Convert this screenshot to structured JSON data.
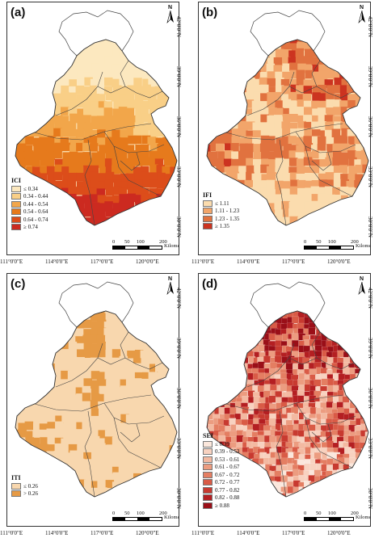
{
  "panels": [
    {
      "id": "a",
      "label": "(a)",
      "legend_title": "ICI",
      "legend": [
        {
          "label": "≤ 0.34",
          "color": "#fce8bf"
        },
        {
          "label": "0.34 - 0.44",
          "color": "#f9cf87"
        },
        {
          "label": "0.44 - 0.54",
          "color": "#f2a64a"
        },
        {
          "label": "0.54 - 0.64",
          "color": "#e67a1c"
        },
        {
          "label": "0.64 - 0.74",
          "color": "#dc4d1a"
        },
        {
          "label": "≥ 0.74",
          "color": "#cc2a20"
        }
      ]
    },
    {
      "id": "b",
      "label": "(b)",
      "legend_title": "IFI",
      "legend": [
        {
          "label": "≤ 1.11",
          "color": "#fbdcae"
        },
        {
          "label": "1.11 - 1.23",
          "color": "#f2a56a"
        },
        {
          "label": "1.23 - 1.35",
          "color": "#e1723f"
        },
        {
          "label": "≥ 1.35",
          "color": "#cc3320"
        }
      ]
    },
    {
      "id": "c",
      "label": "(c)",
      "legend_title": "ITI",
      "legend": [
        {
          "label": "≤ 0.26",
          "color": "#f8d7ae"
        },
        {
          "label": "> 0.26",
          "color": "#e69a45"
        }
      ]
    },
    {
      "id": "d",
      "label": "(d)",
      "legend_title": "SEI",
      "legend": [
        {
          "label": "≤ 0.39",
          "color": "#fbe7dc"
        },
        {
          "label": "0.39 - 0.53",
          "color": "#f8d2c0"
        },
        {
          "label": "0.53 - 0.61",
          "color": "#f3b9a1"
        },
        {
          "label": "0.61 - 0.67",
          "color": "#ec9c80"
        },
        {
          "label": "0.67 - 0.72",
          "color": "#e47e62"
        },
        {
          "label": "0.72 - 0.77",
          "color": "#d95b46"
        },
        {
          "label": "0.77 - 0.82",
          "color": "#c83a30"
        },
        {
          "label": "0.82 - 0.88",
          "color": "#b41f22"
        },
        {
          "label": "≥ 0.88",
          "color": "#9a0f18"
        }
      ]
    }
  ],
  "latitudes": [
    "42°0'0\"N",
    "39°0'0\"N",
    "36°0'0\"N",
    "33°0'0\"N",
    "30°0'0\"N"
  ],
  "longitudes": [
    "111°0'0\"E",
    "114°0'0\"E",
    "117°0'0\"E",
    "120°0'0\"E"
  ],
  "scale": {
    "ticks": [
      "0",
      "50",
      "100",
      "200"
    ],
    "unit": "Kilometers"
  },
  "north_label": "N"
}
